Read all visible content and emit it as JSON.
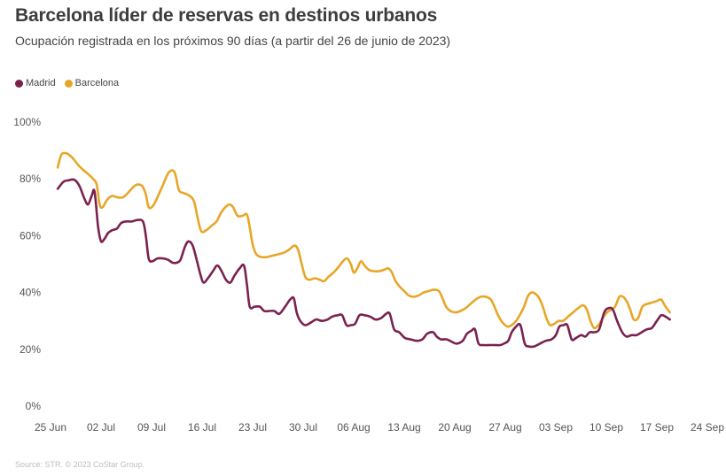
{
  "chart_data": {
    "type": "line",
    "title": "Barcelona líder de reservas en destinos urbanos",
    "subtitle": "Ocupación registrada en los próximos 90 días (a partir del 26 de junio de 2023)",
    "source": "Source: STR. © 2023 CoStar Group.",
    "xlabel": "",
    "ylabel": "",
    "ylim": [
      0,
      100
    ],
    "y_ticks": [
      "0%",
      "20%",
      "40%",
      "60%",
      "80%",
      "100%"
    ],
    "y_tick_values": [
      0,
      20,
      40,
      60,
      80,
      100
    ],
    "x_ticks": [
      "25 Jun",
      "02 Jul",
      "09 Jul",
      "16 Jul",
      "23 Jul",
      "30 Jul",
      "06 Aug",
      "13 Aug",
      "20 Aug",
      "27 Aug",
      "03 Sep",
      "10 Sep",
      "17 Sep",
      "24 Sep"
    ],
    "x_range_days": [
      0,
      91
    ],
    "grid": false,
    "legend_position": "top-left",
    "series": [
      {
        "name": "Madrid",
        "color": "#7b2150",
        "points": [
          [
            1,
            76.5
          ],
          [
            1.8,
            79
          ],
          [
            2.5,
            79.5
          ],
          [
            3.3,
            79.7
          ],
          [
            4,
            77.5
          ],
          [
            4.7,
            73
          ],
          [
            5.2,
            71
          ],
          [
            5.7,
            74
          ],
          [
            6.1,
            75.5
          ],
          [
            6.6,
            63
          ],
          [
            7,
            58
          ],
          [
            7.5,
            59
          ],
          [
            8,
            61
          ],
          [
            8.6,
            62
          ],
          [
            9.2,
            62.5
          ],
          [
            9.8,
            64.5
          ],
          [
            10.5,
            65
          ],
          [
            11.3,
            65
          ],
          [
            12,
            65.5
          ],
          [
            12.8,
            65
          ],
          [
            13.2,
            60
          ],
          [
            13.6,
            52
          ],
          [
            14.1,
            51
          ],
          [
            14.8,
            52
          ],
          [
            15.6,
            52
          ],
          [
            16.3,
            51.5
          ],
          [
            16.9,
            50.5
          ],
          [
            17.5,
            50.5
          ],
          [
            18,
            51.5
          ],
          [
            18.6,
            56
          ],
          [
            19.1,
            58
          ],
          [
            19.7,
            56.5
          ],
          [
            20.3,
            51
          ],
          [
            20.8,
            46
          ],
          [
            21.2,
            43.5
          ],
          [
            21.8,
            45
          ],
          [
            22.5,
            47.5
          ],
          [
            23.1,
            49.5
          ],
          [
            23.7,
            47.5
          ],
          [
            24.3,
            44.5
          ],
          [
            24.9,
            43.5
          ],
          [
            25.5,
            46
          ],
          [
            26.2,
            48.5
          ],
          [
            26.8,
            49.5
          ],
          [
            27.2,
            43
          ],
          [
            27.6,
            35
          ],
          [
            28.3,
            35
          ],
          [
            29,
            35
          ],
          [
            29.6,
            33.5
          ],
          [
            30.3,
            33.5
          ],
          [
            31,
            33.5
          ],
          [
            31.7,
            32.5
          ],
          [
            32.5,
            35
          ],
          [
            33.2,
            37.5
          ],
          [
            33.7,
            38
          ],
          [
            34.1,
            33
          ],
          [
            34.6,
            30
          ],
          [
            35.3,
            28.5
          ],
          [
            36.1,
            29.5
          ],
          [
            36.8,
            30.5
          ],
          [
            37.6,
            30
          ],
          [
            38.4,
            30.5
          ],
          [
            39,
            31.5
          ],
          [
            39.8,
            32
          ],
          [
            40.4,
            32
          ],
          [
            41,
            28.5
          ],
          [
            41.6,
            28.5
          ],
          [
            42.2,
            29
          ],
          [
            42.8,
            32
          ],
          [
            43.5,
            32
          ],
          [
            44.3,
            31.5
          ],
          [
            45,
            30.5
          ],
          [
            45.8,
            31
          ],
          [
            46.5,
            32.5
          ],
          [
            47,
            32.5
          ],
          [
            47.6,
            27
          ],
          [
            48.3,
            26
          ],
          [
            49.1,
            24
          ],
          [
            49.9,
            23.5
          ],
          [
            50.7,
            23
          ],
          [
            51.5,
            23.5
          ],
          [
            52.2,
            25.5
          ],
          [
            53,
            26
          ],
          [
            53.5,
            24.5
          ],
          [
            54.1,
            23.5
          ],
          [
            54.9,
            23.5
          ],
          [
            55.7,
            22.5
          ],
          [
            56.3,
            22
          ],
          [
            57.1,
            23
          ],
          [
            57.7,
            25.5
          ],
          [
            58.3,
            26.5
          ],
          [
            58.8,
            27
          ],
          [
            59.3,
            22
          ],
          [
            60,
            21.5
          ],
          [
            60.8,
            21.5
          ],
          [
            61.5,
            21.5
          ],
          [
            62.3,
            21.5
          ],
          [
            62.8,
            22
          ],
          [
            63.4,
            23
          ],
          [
            63.9,
            26
          ],
          [
            64.5,
            28
          ],
          [
            65.1,
            28.5
          ],
          [
            65.7,
            22
          ],
          [
            66.3,
            21
          ],
          [
            67,
            21
          ],
          [
            67.8,
            22
          ],
          [
            68.6,
            23
          ],
          [
            69.4,
            23.5
          ],
          [
            70,
            25
          ],
          [
            70.5,
            28
          ],
          [
            71.1,
            28.5
          ],
          [
            71.6,
            28.5
          ],
          [
            72.2,
            23.5
          ],
          [
            72.8,
            24
          ],
          [
            73.5,
            25
          ],
          [
            74.1,
            24.5
          ],
          [
            74.7,
            26
          ],
          [
            75.3,
            26
          ],
          [
            76,
            27
          ],
          [
            76.7,
            33
          ],
          [
            77.3,
            34.5
          ],
          [
            77.9,
            34
          ],
          [
            78.5,
            30
          ],
          [
            79.2,
            26
          ],
          [
            79.8,
            24.5
          ],
          [
            80.5,
            25
          ],
          [
            81.2,
            25
          ],
          [
            81.9,
            26
          ],
          [
            82.6,
            27
          ],
          [
            83.3,
            27.5
          ],
          [
            84,
            30
          ],
          [
            84.6,
            32
          ],
          [
            85.2,
            31.5
          ],
          [
            85.8,
            30.5
          ]
        ]
      },
      {
        "name": "Barcelona",
        "color": "#e8a628",
        "points": [
          [
            1,
            84
          ],
          [
            1.5,
            88.5
          ],
          [
            2.2,
            89
          ],
          [
            3,
            87.5
          ],
          [
            3.8,
            85
          ],
          [
            4.6,
            83
          ],
          [
            5.3,
            81.5
          ],
          [
            5.9,
            80
          ],
          [
            6.4,
            78
          ],
          [
            6.8,
            71
          ],
          [
            7.2,
            70
          ],
          [
            7.8,
            72.5
          ],
          [
            8.5,
            74
          ],
          [
            9.3,
            73.5
          ],
          [
            10,
            73.5
          ],
          [
            10.7,
            75
          ],
          [
            11.4,
            77
          ],
          [
            12,
            78
          ],
          [
            12.7,
            77.5
          ],
          [
            13.2,
            74.5
          ],
          [
            13.6,
            70
          ],
          [
            14.2,
            70.5
          ],
          [
            14.9,
            74
          ],
          [
            15.6,
            78
          ],
          [
            16.3,
            82
          ],
          [
            16.9,
            83
          ],
          [
            17.3,
            81.5
          ],
          [
            17.8,
            76
          ],
          [
            18.5,
            75
          ],
          [
            19.3,
            74
          ],
          [
            19.9,
            72
          ],
          [
            20.4,
            66
          ],
          [
            20.9,
            61.5
          ],
          [
            21.6,
            62
          ],
          [
            22.3,
            63.5
          ],
          [
            23,
            65
          ],
          [
            23.6,
            68
          ],
          [
            24.2,
            70
          ],
          [
            24.8,
            71
          ],
          [
            25.3,
            70
          ],
          [
            25.9,
            67
          ],
          [
            26.6,
            67
          ],
          [
            27.2,
            67.5
          ],
          [
            27.6,
            63
          ],
          [
            28,
            57
          ],
          [
            28.5,
            53.5
          ],
          [
            29.2,
            52.5
          ],
          [
            30,
            52.5
          ],
          [
            30.8,
            53
          ],
          [
            31.6,
            53.5
          ],
          [
            32.3,
            54
          ],
          [
            33,
            55
          ],
          [
            33.8,
            56.5
          ],
          [
            34.3,
            55
          ],
          [
            34.8,
            50
          ],
          [
            35.3,
            45.5
          ],
          [
            35.9,
            44.5
          ],
          [
            36.6,
            45
          ],
          [
            37.3,
            44.5
          ],
          [
            37.9,
            44
          ],
          [
            38.5,
            45.5
          ],
          [
            39.2,
            47
          ],
          [
            39.9,
            49
          ],
          [
            40.5,
            51
          ],
          [
            41.1,
            52
          ],
          [
            41.6,
            50
          ],
          [
            42,
            47
          ],
          [
            42.5,
            48.5
          ],
          [
            43,
            51
          ],
          [
            43.5,
            49.5
          ],
          [
            44.1,
            48
          ],
          [
            44.8,
            47.5
          ],
          [
            45.5,
            47.5
          ],
          [
            46.2,
            48
          ],
          [
            46.8,
            48.5
          ],
          [
            47.3,
            47
          ],
          [
            47.8,
            44
          ],
          [
            48.4,
            42
          ],
          [
            49,
            40.5
          ],
          [
            49.6,
            39
          ],
          [
            50.3,
            38.5
          ],
          [
            51,
            39
          ],
          [
            51.7,
            40
          ],
          [
            52.4,
            40.5
          ],
          [
            53.1,
            41
          ],
          [
            53.8,
            40.5
          ],
          [
            54.3,
            38
          ],
          [
            54.8,
            35
          ],
          [
            55.4,
            33.5
          ],
          [
            56.1,
            33
          ],
          [
            56.8,
            33.5
          ],
          [
            57.5,
            34.5
          ],
          [
            58.2,
            36
          ],
          [
            58.9,
            37.5
          ],
          [
            59.6,
            38.5
          ],
          [
            60.3,
            38.5
          ],
          [
            61,
            37.5
          ],
          [
            61.5,
            35
          ],
          [
            62,
            32
          ],
          [
            62.6,
            29.5
          ],
          [
            63.3,
            28
          ],
          [
            63.9,
            28.5
          ],
          [
            64.5,
            30
          ],
          [
            65.1,
            32.5
          ],
          [
            65.6,
            35
          ],
          [
            66.1,
            38.5
          ],
          [
            66.6,
            40
          ],
          [
            67.2,
            39.5
          ],
          [
            67.7,
            38
          ],
          [
            68.2,
            35
          ],
          [
            68.7,
            31
          ],
          [
            69.2,
            28.5
          ],
          [
            69.8,
            29
          ],
          [
            70.4,
            30
          ],
          [
            71,
            30
          ],
          [
            71.7,
            31.5
          ],
          [
            72.4,
            33
          ],
          [
            73.1,
            34.5
          ],
          [
            73.8,
            35.5
          ],
          [
            74.3,
            34
          ],
          [
            74.8,
            30
          ],
          [
            75.3,
            27.5
          ],
          [
            75.9,
            28.5
          ],
          [
            76.5,
            31
          ],
          [
            77.1,
            33
          ],
          [
            77.7,
            34
          ],
          [
            78.2,
            35
          ],
          [
            78.8,
            38.5
          ],
          [
            79.3,
            38.5
          ],
          [
            79.8,
            37
          ],
          [
            80.3,
            34
          ],
          [
            80.8,
            30.5
          ],
          [
            81.4,
            31
          ],
          [
            82,
            35
          ],
          [
            82.7,
            36
          ],
          [
            83.4,
            36.5
          ],
          [
            84,
            37
          ],
          [
            84.6,
            37.5
          ],
          [
            85.2,
            35
          ],
          [
            85.8,
            33
          ]
        ]
      }
    ]
  }
}
